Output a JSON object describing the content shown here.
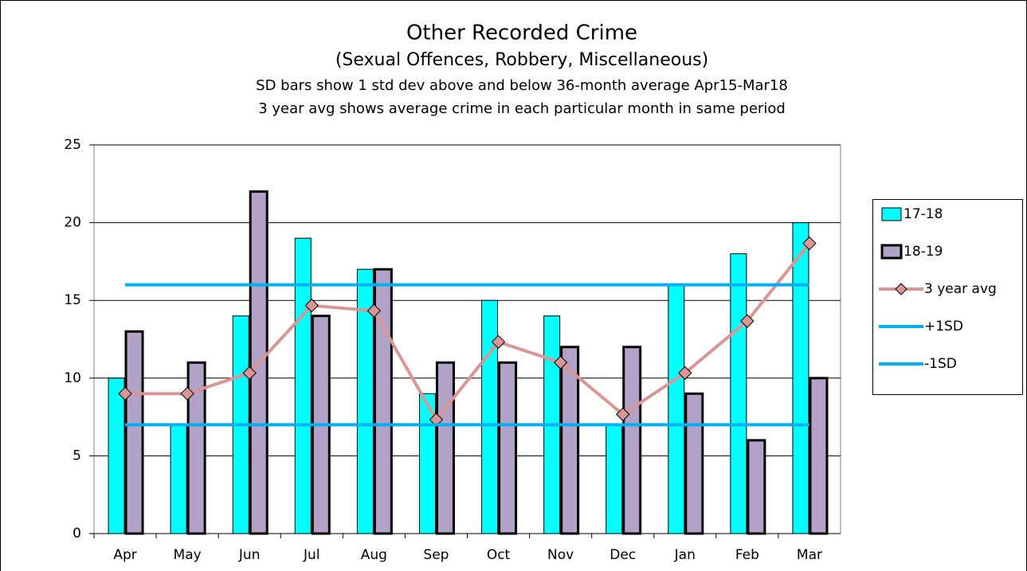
{
  "chart_data": {
    "type": "bar",
    "title": "Other Recorded Crime",
    "subtitle": "(Sexual Offences, Robbery, Miscellaneous)",
    "annotations": [
      "SD bars show 1 std dev above and below 36-month average  Apr15-Mar18",
      "3 year avg shows average crime in each particular month in same period"
    ],
    "categories": [
      "Apr",
      "May",
      "Jun",
      "Jul",
      "Aug",
      "Sep",
      "Oct",
      "Nov",
      "Dec",
      "Jan",
      "Feb",
      "Mar"
    ],
    "series": [
      {
        "name": "17-18",
        "type": "bar",
        "color": "#00ffff",
        "values": [
          10,
          7,
          14,
          19,
          17,
          9,
          15,
          14,
          7,
          16,
          18,
          20
        ]
      },
      {
        "name": "18-19",
        "type": "bar",
        "color": "#b3a2c7",
        "values": [
          13,
          11,
          22,
          14,
          17,
          11,
          11,
          12,
          12,
          9,
          6,
          10
        ]
      },
      {
        "name": "3 year avg",
        "type": "line",
        "color": "#d99694",
        "values": [
          9,
          9,
          10.33,
          14.67,
          14.33,
          7.33,
          12.33,
          11,
          7.67,
          10.33,
          13.67,
          18.67
        ]
      },
      {
        "name": "+1SD",
        "type": "line",
        "color": "#00b0f0",
        "values": [
          16,
          16,
          16,
          16,
          16,
          16,
          16,
          16,
          16,
          16,
          16,
          16
        ]
      },
      {
        "name": "-1SD",
        "type": "line",
        "color": "#00b0f0",
        "values": [
          7,
          7,
          7,
          7,
          7,
          7,
          7,
          7,
          7,
          7,
          7,
          7
        ]
      }
    ],
    "ylim": [
      0,
      25
    ],
    "yticks": [
      0,
      5,
      10,
      15,
      20,
      25
    ],
    "grid": true,
    "legend": "right"
  }
}
